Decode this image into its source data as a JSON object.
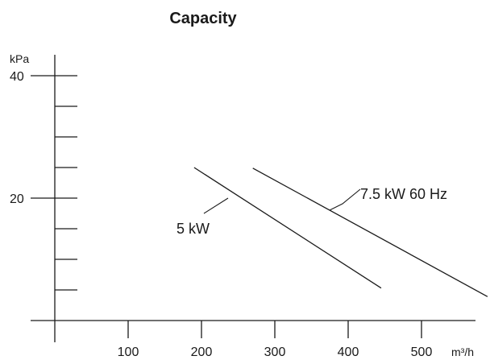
{
  "chart_data": {
    "type": "line",
    "title": "Capacity",
    "xlabel_unit": "m³/h",
    "ylabel_unit": "kPa",
    "xlim": [
      0,
      580
    ],
    "ylim": [
      0,
      50
    ],
    "x_ticks": [
      100,
      200,
      300,
      400,
      500
    ],
    "x_tick_labels": [
      "100",
      "200",
      "300",
      "400",
      "500"
    ],
    "y_minor_ticks": [
      5,
      10,
      15,
      25,
      30,
      35
    ],
    "y_major_ticks": [
      20,
      40
    ],
    "y_tick_labels": [
      "20",
      "40"
    ],
    "series": [
      {
        "name": "5 kW",
        "x": [
          190,
          445
        ],
        "y": [
          25,
          5.3
        ]
      },
      {
        "name": "7.5 kW 60 Hz",
        "x": [
          270,
          590
        ],
        "y": [
          24.9,
          3.9
        ]
      }
    ]
  }
}
